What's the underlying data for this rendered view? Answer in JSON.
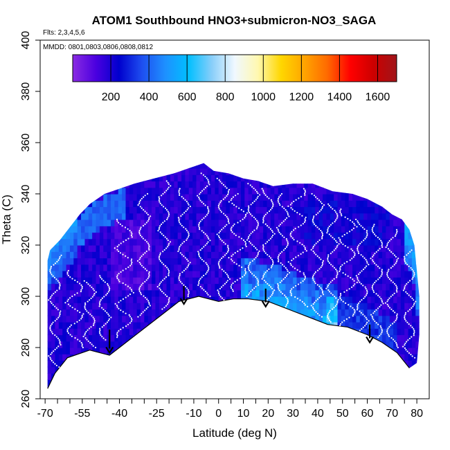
{
  "chart_data": {
    "type": "heatmap",
    "title": "ATOM1 Southbound HNO3+submicron-NO3_SAGA",
    "flights_note": "Flts: 2,3,4,5,6",
    "dates_note": "MMDD: 0801,0803,0806,0808,0812",
    "xlabel": "Latitude (deg N)",
    "ylabel": "Theta (C)",
    "xlim": [
      -72,
      85
    ],
    "ylim": [
      260,
      400
    ],
    "x_ticks": [
      -70,
      -55,
      -40,
      -25,
      -10,
      0,
      10,
      20,
      30,
      40,
      50,
      60,
      70,
      80
    ],
    "x_tick_labels": [
      "-70",
      "-55",
      "-40",
      "-25",
      "-10",
      "0",
      "10",
      "20",
      "30",
      "40",
      "50",
      "60",
      "70",
      "80"
    ],
    "x_minor_ticks": [
      -65,
      -60,
      -50,
      -45,
      -35,
      -30,
      -20,
      -15,
      -5,
      5,
      15,
      25,
      35,
      45,
      55,
      65,
      75
    ],
    "y_ticks": [
      260,
      280,
      300,
      320,
      340,
      360,
      380,
      400
    ],
    "y_tick_labels": [
      "260",
      "280",
      "300",
      "320",
      "340",
      "360",
      "380",
      "400"
    ],
    "colorbar": {
      "range": [
        0,
        1700
      ],
      "ticks": [
        200,
        400,
        600,
        800,
        1000,
        1200,
        1400,
        1600
      ],
      "tick_labels": [
        "200",
        "400",
        "600",
        "800",
        "1000",
        "1200",
        "1400",
        "1600"
      ],
      "colors": [
        "#8a2be2",
        "#4b00e0",
        "#0000cd",
        "#1e4ff0",
        "#1e90ff",
        "#00bfff",
        "#87cefa",
        "#f0f8ff",
        "#fff8b0",
        "#ffd700",
        "#ffa500",
        "#ff6a00",
        "#ff0000",
        "#cc0000",
        "#a0151a"
      ]
    },
    "upper_boundary": [
      [
        -69,
        314
      ],
      [
        -68,
        318
      ],
      [
        -64,
        322
      ],
      [
        -60,
        327
      ],
      [
        -56,
        332
      ],
      [
        -52,
        336
      ],
      [
        -46,
        340
      ],
      [
        -40,
        342
      ],
      [
        -34,
        344
      ],
      [
        -26,
        346
      ],
      [
        -18,
        348
      ],
      [
        -12,
        350
      ],
      [
        -6,
        352
      ],
      [
        -2,
        349
      ],
      [
        4,
        348
      ],
      [
        10,
        346
      ],
      [
        16,
        345
      ],
      [
        22,
        343
      ],
      [
        30,
        344
      ],
      [
        38,
        344
      ],
      [
        46,
        341
      ],
      [
        54,
        340
      ],
      [
        60,
        338
      ],
      [
        66,
        335
      ],
      [
        70,
        332
      ],
      [
        74,
        330
      ],
      [
        77,
        326
      ],
      [
        79,
        320
      ],
      [
        80,
        310
      ],
      [
        81,
        300
      ],
      [
        81,
        285
      ],
      [
        80,
        274
      ]
    ],
    "lower_boundary": [
      [
        -69,
        264
      ],
      [
        -66,
        270
      ],
      [
        -61,
        276
      ],
      [
        -52,
        279
      ],
      [
        -44,
        277
      ],
      [
        -40,
        280
      ],
      [
        -32,
        286
      ],
      [
        -24,
        292
      ],
      [
        -16,
        298
      ],
      [
        -8,
        300
      ],
      [
        0,
        298
      ],
      [
        6,
        299
      ],
      [
        12,
        299
      ],
      [
        20,
        298
      ],
      [
        28,
        295
      ],
      [
        36,
        292
      ],
      [
        44,
        289
      ],
      [
        52,
        288
      ],
      [
        60,
        285
      ],
      [
        66,
        282
      ],
      [
        72,
        278
      ],
      [
        77,
        272
      ]
    ],
    "field_description": "values mostly 50-300 (purple/dark blue); elevated 300-600 near lower boundary at 10-45N and near top edges at -68 to -40 and 76-80",
    "annotations": [
      {
        "type": "arrow",
        "x": -44,
        "y_start": 287,
        "y_end": 278
      },
      {
        "type": "arrow",
        "x": -14,
        "y_start": 304,
        "y_end": 297
      },
      {
        "type": "arrow",
        "x": 19,
        "y_start": 303,
        "y_end": 296
      },
      {
        "type": "arrow",
        "x": 61,
        "y_start": 289,
        "y_end": 282
      }
    ],
    "flight_tracks": [
      {
        "x0": -66,
        "lat_amp": 2,
        "y_start": 268,
        "y_end": 316
      },
      {
        "x0": -58,
        "lat_amp": 3,
        "y_start": 280,
        "y_end": 310
      },
      {
        "x0": -52,
        "lat_amp": 2,
        "y_start": 280,
        "y_end": 306
      },
      {
        "x0": -46,
        "lat_amp": 2,
        "y_start": 283,
        "y_end": 308
      },
      {
        "x0": -38,
        "lat_amp": 3,
        "y_start": 284,
        "y_end": 330
      },
      {
        "x0": -30,
        "lat_amp": 2,
        "y_start": 292,
        "y_end": 340
      },
      {
        "x0": -22,
        "lat_amp": 2,
        "y_start": 295,
        "y_end": 345
      },
      {
        "x0": -14,
        "lat_amp": 2,
        "y_start": 300,
        "y_end": 342
      },
      {
        "x0": -6,
        "lat_amp": 2,
        "y_start": 300,
        "y_end": 348
      },
      {
        "x0": 2,
        "lat_amp": 2,
        "y_start": 298,
        "y_end": 346
      },
      {
        "x0": 8,
        "lat_amp": 3,
        "y_start": 302,
        "y_end": 340
      },
      {
        "x0": 14,
        "lat_amp": 2,
        "y_start": 300,
        "y_end": 344
      },
      {
        "x0": 20,
        "lat_amp": 2,
        "y_start": 298,
        "y_end": 342
      },
      {
        "x0": 26,
        "lat_amp": 2,
        "y_start": 296,
        "y_end": 340
      },
      {
        "x0": 32,
        "lat_amp": 3,
        "y_start": 296,
        "y_end": 342
      },
      {
        "x0": 40,
        "lat_amp": 2,
        "y_start": 292,
        "y_end": 340
      },
      {
        "x0": 46,
        "lat_amp": 2,
        "y_start": 290,
        "y_end": 336
      },
      {
        "x0": 52,
        "lat_amp": 3,
        "y_start": 288,
        "y_end": 334
      },
      {
        "x0": 58,
        "lat_amp": 2,
        "y_start": 286,
        "y_end": 330
      },
      {
        "x0": 64,
        "lat_amp": 2,
        "y_start": 284,
        "y_end": 328
      },
      {
        "x0": 70,
        "lat_amp": 2,
        "y_start": 280,
        "y_end": 326
      },
      {
        "x0": 77,
        "lat_amp": 2,
        "y_start": 276,
        "y_end": 318
      }
    ]
  }
}
